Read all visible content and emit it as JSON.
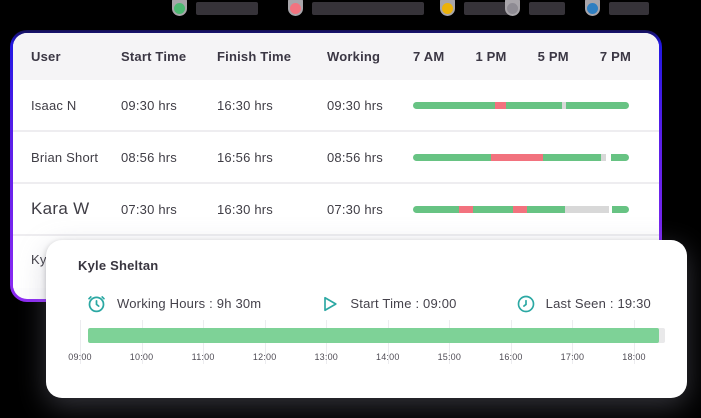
{
  "legend": {
    "items": [
      {
        "name": "legend-green",
        "dot_color": "#4db872"
      },
      {
        "name": "legend-red",
        "dot_color": "#f3737f"
      },
      {
        "name": "legend-yellow",
        "dot_color": "#ecb20a"
      },
      {
        "name": "legend-gray",
        "dot_color": "#8e8b93"
      },
      {
        "name": "legend-blue",
        "dot_color": "#2f7fc1"
      }
    ]
  },
  "table": {
    "columns": [
      "User",
      "Start Time",
      "Finish Time",
      "Working"
    ],
    "time_labels": [
      "7 AM",
      "1 PM",
      "5 PM",
      "7 PM"
    ],
    "rows": [
      {
        "user": "Isaac N",
        "start": "09:30 hrs",
        "finish": "16:30 hrs",
        "working": "09:30 hrs",
        "segments": [
          [
            "green",
            38
          ],
          [
            "red",
            5
          ],
          [
            "green",
            26
          ],
          [
            "gray",
            2
          ],
          [
            "green",
            29
          ]
        ]
      },
      {
        "user": "Brian Short",
        "start": "08:56 hrs",
        "finish": "16:56 hrs",
        "working": "08:56 hrs",
        "segments": [
          [
            "green",
            36
          ],
          [
            "red",
            24
          ],
          [
            "green",
            27
          ],
          [
            "gray",
            2.5
          ],
          [
            "white",
            2
          ],
          [
            "green",
            8.5
          ]
        ]
      },
      {
        "user": "Kara W",
        "start": "07:30 hrs",
        "finish": "16:30 hrs",
        "working": "07:30 hrs",
        "segments": [
          [
            "green",
            21.5
          ],
          [
            "red",
            6.3
          ],
          [
            "green",
            18.4
          ],
          [
            "red",
            6.7
          ],
          [
            "green",
            17.5
          ],
          [
            "gray",
            20.2
          ],
          [
            "white",
            1.7
          ],
          [
            "green",
            7.7
          ]
        ]
      },
      {
        "user": "Kyle Sheltan",
        "start": "",
        "finish": "",
        "working": "",
        "segments": []
      }
    ]
  },
  "overlay": {
    "title": "Kyle Sheltan",
    "stats": [
      {
        "icon": "alarm-clock-icon",
        "label": "Working Hours : 9h 30m"
      },
      {
        "icon": "play-icon",
        "label": "Start Time : 09:00"
      },
      {
        "icon": "clock-icon",
        "label": "Last Seen : 19:30"
      }
    ],
    "timeline": {
      "ticks": [
        "09:00",
        "10:00",
        "11:00",
        "12:00",
        "13:00",
        "14:00",
        "15:00",
        "16:00",
        "17:00",
        "18:00"
      ],
      "fill_percent": 99
    }
  },
  "colors": {
    "segment": {
      "green": "#67c383",
      "red": "#f2727e",
      "gray": "#d8d8d8",
      "white": "#ffffff"
    },
    "overlay_bar": "#7ed297",
    "teal_icon": "#2ba8a3",
    "border_gradient_top": "#2217e2",
    "border_gradient_bottom": "#8d2bf2"
  }
}
